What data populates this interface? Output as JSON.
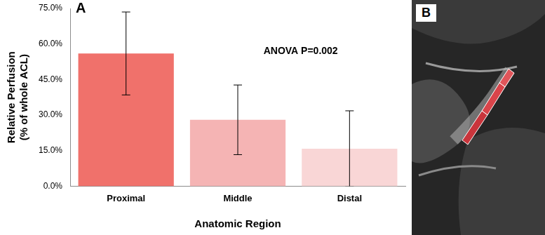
{
  "chart_data": {
    "type": "bar",
    "panel_label": "A",
    "categories": [
      "Proximal",
      "Middle",
      "Distal"
    ],
    "values": [
      56.0,
      28.0,
      15.8
    ],
    "errors": [
      17.5,
      14.7,
      16.0
    ],
    "colors": [
      "#f0716b",
      "#f5b4b4",
      "#f9d6d6"
    ],
    "x_label": "Anatomic Region",
    "y_label": [
      "Relative Perfusion",
      "(% of whole ACL)"
    ],
    "annotations": [
      "ANOVA P=0.002"
    ],
    "ylim": [
      0,
      75
    ],
    "yticks": [
      {
        "value": 0,
        "label": "0.0%"
      },
      {
        "value": 15,
        "label": "15.0%"
      },
      {
        "value": 30,
        "label": "30.0%"
      },
      {
        "value": 45,
        "label": "45.0%"
      },
      {
        "value": 60,
        "label": "60.0%"
      },
      {
        "value": 75,
        "label": "75.0%"
      }
    ],
    "grid": false
  },
  "image_panel": {
    "label": "B"
  }
}
